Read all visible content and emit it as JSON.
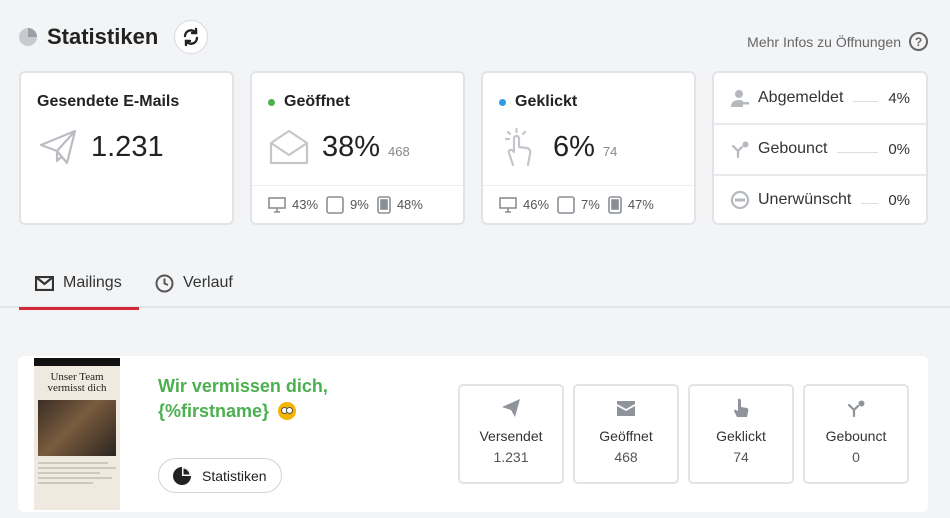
{
  "header": {
    "title": "Statistiken",
    "more_info": "Mehr Infos zu Öffnungen",
    "help": "?"
  },
  "cards": {
    "sent": {
      "title": "Gesendete E-Mails",
      "value": "1.231"
    },
    "opened": {
      "title": "Geöffnet",
      "value": "38%",
      "count": "468",
      "dot_color": "#4caf50",
      "devices": {
        "desktop": "43%",
        "tablet": "9%",
        "mobile": "48%"
      }
    },
    "clicked": {
      "title": "Geklickt",
      "value": "6%",
      "count": "74",
      "dot_color": "#2e9be6",
      "devices": {
        "desktop": "46%",
        "tablet": "7%",
        "mobile": "47%"
      }
    },
    "other": [
      {
        "label": "Abgemeldet",
        "value": "4%",
        "icon": "user-remove-icon"
      },
      {
        "label": "Gebounct",
        "value": "0%",
        "icon": "bounce-icon"
      },
      {
        "label": "Unerwünscht",
        "value": "0%",
        "icon": "spam-icon"
      }
    ]
  },
  "tabs": [
    {
      "label": "Mailings",
      "icon": "envelope-icon",
      "active": true
    },
    {
      "label": "Verlauf",
      "icon": "clock-icon",
      "active": false
    }
  ],
  "mailing": {
    "subject_line1": "Wir vermissen dich,",
    "subject_line2": "{%firstname}",
    "thumbnail_title": "Unser Team vermisst dich",
    "stats_button": "Statistiken",
    "metrics": [
      {
        "label": "Versendet",
        "value": "1.231",
        "icon": "paper-plane-icon"
      },
      {
        "label": "Geöffnet",
        "value": "468",
        "icon": "envelope-icon"
      },
      {
        "label": "Geklickt",
        "value": "74",
        "icon": "pointer-icon"
      },
      {
        "label": "Gebounct",
        "value": "0",
        "icon": "bounce-icon"
      }
    ]
  },
  "colors": {
    "accent": "#d6283a",
    "subject": "#4caf50"
  }
}
